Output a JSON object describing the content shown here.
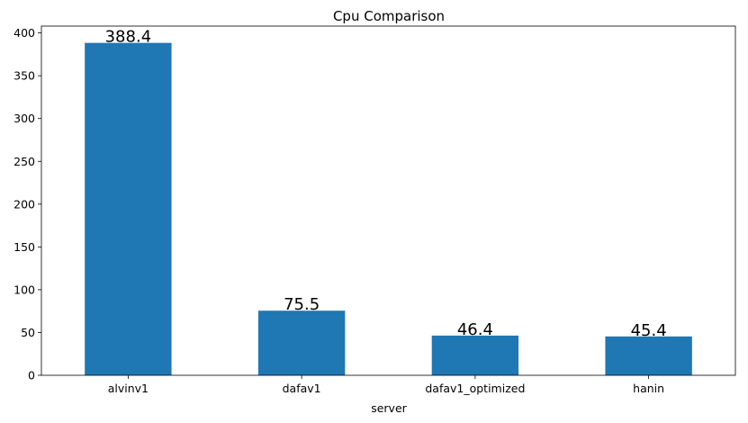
{
  "chart_data": {
    "type": "bar",
    "title": "Cpu Comparison",
    "xlabel": "server",
    "ylabel": "",
    "categories": [
      "alvinv1",
      "dafav1",
      "dafav1_optimized",
      "hanin"
    ],
    "values": [
      388.4,
      75.5,
      46.4,
      45.4
    ],
    "data_labels": [
      "388.4",
      "75.5",
      "46.4",
      "45.4"
    ],
    "ylim": [
      0,
      408
    ],
    "yticks": [
      0,
      50,
      100,
      150,
      200,
      250,
      300,
      350,
      400
    ],
    "bar_color": "#1f77b4",
    "grid": false,
    "legend": "none"
  }
}
